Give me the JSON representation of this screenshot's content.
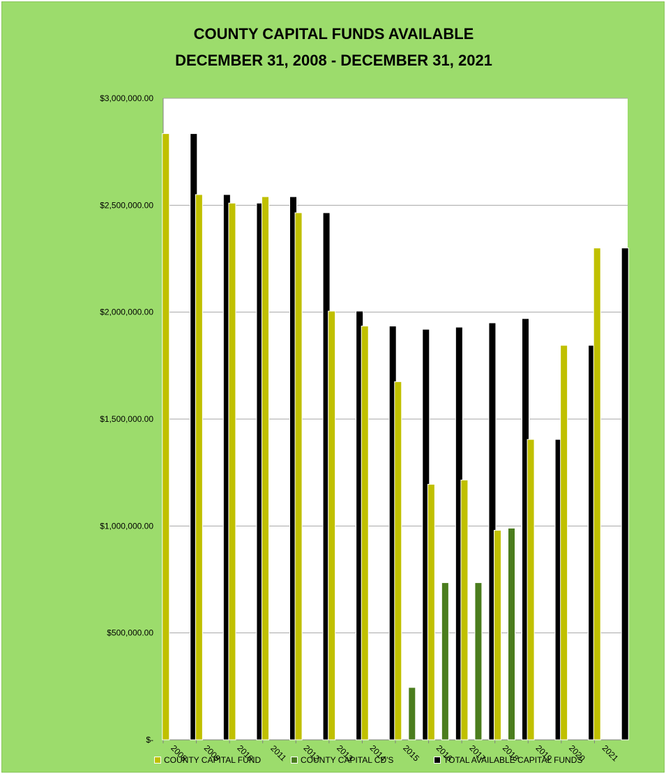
{
  "chart_data": {
    "type": "bar",
    "title": "COUNTY CAPITAL FUNDS AVAILABLE",
    "subtitle": "DECEMBER 31, 2008 - DECEMBER 31, 2021",
    "xlabel": "",
    "ylabel": "",
    "ylim": [
      0,
      3000000
    ],
    "y_ticks": [
      0,
      500000,
      1000000,
      1500000,
      2000000,
      2500000,
      3000000
    ],
    "y_tick_labels": [
      "$-",
      "$500,000.00",
      "$1,000,000.00",
      "$1,500,000.00",
      "$2,000,000.00",
      "$2,500,000.00",
      "$3,000,000.00"
    ],
    "grid": true,
    "legend_position": "bottom",
    "categories": [
      "2008",
      "2009",
      "2010",
      "2011",
      "2012",
      "2013",
      "2014",
      "2015",
      "2016",
      "2017",
      "2018",
      "2019",
      "2020",
      "2021"
    ],
    "series": [
      {
        "name": "COUNTY CAPITAL FUND",
        "color": "#c0c000",
        "values": [
          2835000,
          2550000,
          2510000,
          2540000,
          2465000,
          2005000,
          1935000,
          1675000,
          1195000,
          1215000,
          980000,
          1405000,
          1845000,
          2300000
        ]
      },
      {
        "name": "COUNTY CAPITAL CD'S",
        "color": "#4b7d1e",
        "values": [
          0,
          0,
          0,
          0,
          0,
          0,
          0,
          245000,
          735000,
          735000,
          990000,
          0,
          0,
          0
        ]
      },
      {
        "name": "TOTAL AVAILABLE CAPITAL FUNDS",
        "color": "#000000",
        "values": [
          2835000,
          2550000,
          2510000,
          2540000,
          2465000,
          2005000,
          1935000,
          1920000,
          1930000,
          1950000,
          1970000,
          1405000,
          1845000,
          2300000
        ]
      }
    ]
  }
}
